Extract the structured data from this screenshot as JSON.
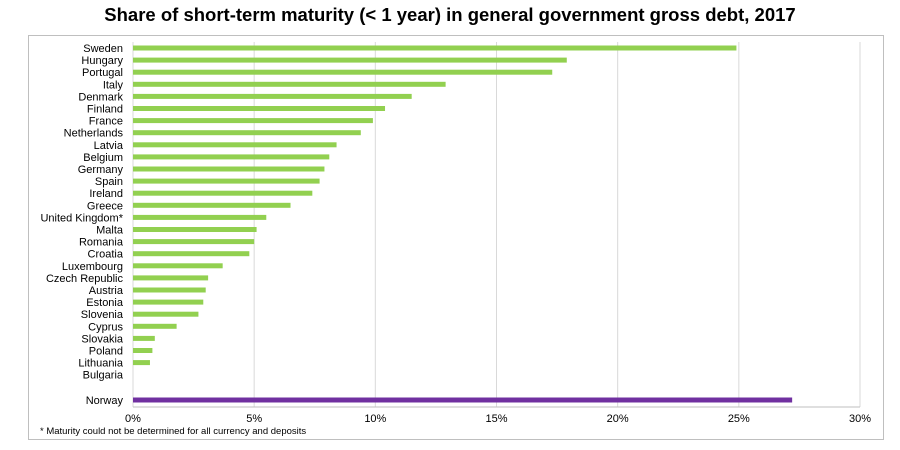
{
  "chart_data": {
    "type": "bar",
    "orientation": "horizontal",
    "title": "Share of short-term maturity (< 1 year) in general government gross debt, 2017",
    "footnote": "* Maturity could not be determined for all currency and deposits",
    "xlim": [
      0,
      30
    ],
    "ticks": [
      "0%",
      "5%",
      "10%",
      "15%",
      "20%",
      "25%",
      "30%"
    ],
    "tick_values": [
      0,
      5,
      10,
      15,
      20,
      25,
      30
    ],
    "grid": true,
    "colors": {
      "eu": "#92d050",
      "non_eu": "#7030a0",
      "grid": "#d9d9d9"
    },
    "categories": [
      "Sweden",
      "Hungary",
      "Portugal",
      "Italy",
      "Denmark",
      "Finland",
      "France",
      "Netherlands",
      "Latvia",
      "Belgium",
      "Germany",
      "Spain",
      "Ireland",
      "Greece",
      "United Kingdom*",
      "Malta",
      "Romania",
      "Croatia",
      "Luxembourg",
      "Czech Republic",
      "Austria",
      "Estonia",
      "Slovenia",
      "Cyprus",
      "Slovakia",
      "Poland",
      "Lithuania",
      "Bulgaria"
    ],
    "values": [
      24.9,
      17.9,
      17.3,
      12.9,
      11.5,
      10.4,
      9.9,
      9.4,
      8.4,
      8.1,
      7.9,
      7.7,
      7.4,
      6.5,
      5.5,
      5.1,
      5.0,
      4.8,
      3.7,
      3.1,
      3.0,
      2.9,
      2.7,
      1.8,
      0.9,
      0.8,
      0.7,
      0.0
    ],
    "separate": {
      "category": "Norway",
      "value": 27.2
    }
  }
}
